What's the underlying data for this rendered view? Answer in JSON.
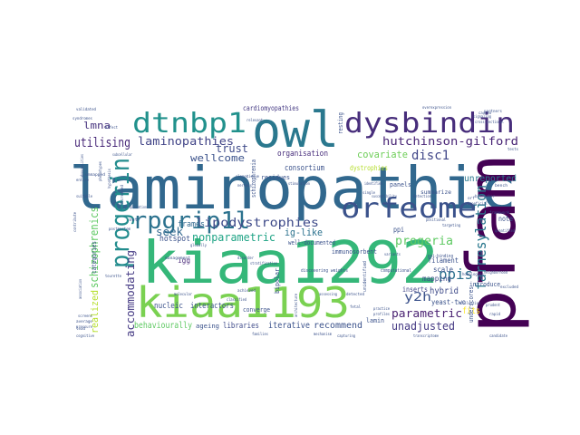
{
  "title": "",
  "colors": {
    "background": "#ffffff",
    "palette_note": "viridis",
    "dark_purple": "#440154",
    "indigo": "#46327e",
    "blue": "#365c8d",
    "teal": "#277f8e",
    "green_teal": "#1fa187",
    "green": "#4ac16d",
    "lime": "#a0da39",
    "yellow": "#fde725"
  },
  "words": [
    {
      "text": "laminopathic",
      "color": "#31688e"
    },
    {
      "text": "kiaa1292",
      "color": "#35b779"
    },
    {
      "text": "pfam",
      "color": "#440154"
    },
    {
      "text": "owl",
      "color": "#2a788e"
    },
    {
      "text": "kiaa1193",
      "color": "#7ad151"
    },
    {
      "text": "dysbindin",
      "color": "#472d7b"
    },
    {
      "text": "dtnbp1",
      "color": "#21918c"
    },
    {
      "text": "orfeome",
      "color": "#3b528b"
    },
    {
      "text": "rpgrip1l",
      "color": "#2c728e"
    },
    {
      "text": "progerin",
      "color": "#228c8d"
    },
    {
      "text": "lipodystrophies",
      "color": "#3e4a89"
    },
    {
      "text": "laminopathies",
      "color": "#414487"
    },
    {
      "text": "hutchinson-gilford",
      "color": "#482475"
    },
    {
      "text": "utilising",
      "color": "#482878"
    },
    {
      "text": "farnesylation",
      "color": "#2a788e"
    },
    {
      "text": "nonparametric",
      "color": "#20a486"
    },
    {
      "text": "schizophrenics",
      "color": "#5ec962"
    },
    {
      "text": "accommodating",
      "color": "#443983"
    },
    {
      "text": "ppis",
      "color": "#2c728e"
    },
    {
      "text": "progeria",
      "color": "#5ec962"
    },
    {
      "text": "y2h",
      "color": "#3b528b"
    },
    {
      "text": "parametric",
      "color": "#481f70"
    },
    {
      "text": "unadjusted",
      "color": "#443983"
    },
    {
      "text": "covariate",
      "color": "#6ece58"
    },
    {
      "text": "disc1",
      "color": "#404688"
    },
    {
      "text": "trust",
      "color": "#3e4a89"
    },
    {
      "text": "wellcome",
      "color": "#3b528b"
    },
    {
      "text": "seek",
      "color": "#31688e"
    },
    {
      "text": "lmna",
      "color": "#46327e"
    },
    {
      "text": "ig-like",
      "color": "#2c728e"
    },
    {
      "text": "realized",
      "color": "#b5de2b"
    },
    {
      "text": "behaviourally",
      "color": "#5ec962"
    },
    {
      "text": "iterative",
      "color": "#3b528b"
    },
    {
      "text": "recommend",
      "color": "#3b528b"
    },
    {
      "text": "hybrid",
      "color": "#3e4a89"
    },
    {
      "text": "unreported",
      "color": "#2a788e"
    },
    {
      "text": "fits",
      "color": "#fde725"
    },
    {
      "text": "mapping",
      "color": "#3e4a89"
    },
    {
      "text": "organisation",
      "color": "#472d7b"
    },
    {
      "text": "consortium",
      "color": "#3b528b"
    },
    {
      "text": "hotspot",
      "color": "#3b528b"
    },
    {
      "text": "frames",
      "color": "#31688e"
    },
    {
      "text": "igg",
      "color": "#482878"
    },
    {
      "text": "nucleic",
      "color": "#3b528b"
    },
    {
      "text": "interactors",
      "color": "#3b528b"
    },
    {
      "text": "libraries",
      "color": "#3e4a89"
    },
    {
      "text": "filament",
      "color": "#3b528b"
    },
    {
      "text": "scale",
      "color": "#3b528b"
    },
    {
      "text": "yeast-two",
      "color": "#3b528b"
    },
    {
      "text": "inserts",
      "color": "#414487"
    },
    {
      "text": "cardiomyopathies",
      "color": "#443983"
    },
    {
      "text": "dystrophies",
      "color": "#b5de2b"
    },
    {
      "text": "note",
      "color": "#3b528b"
    },
    {
      "text": "ppi",
      "color": "#3b528b"
    },
    {
      "text": "ageing",
      "color": "#3b528b"
    },
    {
      "text": "categories",
      "color": "#3b528b"
    },
    {
      "text": "lamin",
      "color": "#3b528b"
    },
    {
      "text": "bipolar",
      "color": "#3b528b"
    },
    {
      "text": "converge",
      "color": "#3b528b"
    },
    {
      "text": "underscores",
      "color": "#3b528b"
    },
    {
      "text": "panels",
      "color": "#3b528b"
    },
    {
      "text": "residues",
      "color": "#3b528b"
    },
    {
      "text": "introduce",
      "color": "#3b528b"
    },
    {
      "text": "immunosorbent",
      "color": "#3b528b"
    },
    {
      "text": "well-documented",
      "color": "#3b528b"
    },
    {
      "text": "discovering weights",
      "color": "#3b528b"
    },
    {
      "text": "schizophrenia",
      "color": "#3b528b"
    },
    {
      "text": "resting",
      "color": "#3b528b"
    },
    {
      "text": "summarize",
      "color": "#3b528b"
    },
    {
      "text": "validated",
      "color": "#3b528b"
    },
    {
      "text": "caused",
      "color": "#3b528b"
    },
    {
      "text": "tests",
      "color": "#3b528b"
    },
    {
      "text": "stratification",
      "color": "#3b528b"
    },
    {
      "text": "management",
      "color": "#3b528b"
    },
    {
      "text": "globally",
      "color": "#3b528b"
    },
    {
      "text": "prudent",
      "color": "#3b528b"
    },
    {
      "text": "cognitive",
      "color": "#3b528b"
    },
    {
      "text": "postmortem",
      "color": "#3b528b"
    },
    {
      "text": "partners",
      "color": "#3b528b"
    },
    {
      "text": "unidentified",
      "color": "#3b528b"
    },
    {
      "text": "computational",
      "color": "#3b528b"
    },
    {
      "text": "collection",
      "color": "#3b528b"
    },
    {
      "text": "detected",
      "color": "#3b528b"
    },
    {
      "text": "detection",
      "color": "#3b528b"
    },
    {
      "text": "framework",
      "color": "#3b528b"
    },
    {
      "text": "unmapped",
      "color": "#3b528b"
    },
    {
      "text": "clones",
      "color": "#3b528b"
    },
    {
      "text": "nervous",
      "color": "#3b528b"
    },
    {
      "text": "bench",
      "color": "#3b528b"
    },
    {
      "text": "signaling",
      "color": "#3b528b"
    },
    {
      "text": "fetal",
      "color": "#3b528b"
    },
    {
      "text": "affect",
      "color": "#3b528b"
    },
    {
      "text": "quantified",
      "color": "#3b528b"
    },
    {
      "text": "biomarker",
      "color": "#3b528b"
    },
    {
      "text": "disorder",
      "color": "#3b528b"
    },
    {
      "text": "assessing",
      "color": "#3b528b"
    },
    {
      "text": "variants",
      "color": "#3b528b"
    },
    {
      "text": "homologues",
      "color": "#3b528b"
    },
    {
      "text": "ppi-binding",
      "color": "#3b528b"
    },
    {
      "text": "tourette",
      "color": "#3b528b"
    },
    {
      "text": "average",
      "color": "#3b528b"
    },
    {
      "text": "pressure",
      "color": "#3b528b"
    },
    {
      "text": "stimulation",
      "color": "#3b528b"
    },
    {
      "text": "molecular",
      "color": "#3b528b"
    },
    {
      "text": "achieved",
      "color": "#3b528b"
    },
    {
      "text": "share",
      "color": "#3b528b"
    },
    {
      "text": "classified",
      "color": "#3b528b"
    },
    {
      "text": "orf",
      "color": "#3b528b"
    },
    {
      "text": "set",
      "color": "#3b528b"
    },
    {
      "text": "entire",
      "color": "#3b528b"
    },
    {
      "text": "syndromes",
      "color": "#3b528b"
    },
    {
      "text": "single",
      "color": "#3b528b"
    },
    {
      "text": "screens",
      "color": "#3b528b"
    },
    {
      "text": "subcellular",
      "color": "#3b528b"
    },
    {
      "text": "association",
      "color": "#3b528b"
    },
    {
      "text": "abnormalities",
      "color": "#3b528b"
    },
    {
      "text": "contribute",
      "color": "#3b528b"
    },
    {
      "text": "phenotypes",
      "color": "#3b528b"
    },
    {
      "text": "hypothesis",
      "color": "#3b528b"
    },
    {
      "text": "screened",
      "color": "#3b528b"
    },
    {
      "text": "excluded",
      "color": "#3b528b"
    },
    {
      "text": "practice",
      "color": "#3b528b"
    },
    {
      "text": "positional",
      "color": "#3b528b"
    },
    {
      "text": "architecture",
      "color": "#3b528b"
    },
    {
      "text": "overexpression",
      "color": "#3b528b"
    },
    {
      "text": "cross-sectional",
      "color": "#3b528b"
    },
    {
      "text": "suitable",
      "color": "#3b528b"
    },
    {
      "text": "lead",
      "color": "#3b528b"
    },
    {
      "text": "beneficial",
      "color": "#3b528b"
    },
    {
      "text": "relevant",
      "color": "#3b528b"
    },
    {
      "text": "identifies",
      "color": "#3b528b"
    },
    {
      "text": "tissue",
      "color": "#3b528b"
    },
    {
      "text": "targeting",
      "color": "#3b528b"
    },
    {
      "text": "rapid",
      "color": "#3b528b"
    },
    {
      "text": "profiles",
      "color": "#3b528b"
    },
    {
      "text": "susceptibility",
      "color": "#3b528b"
    },
    {
      "text": "neighborhood",
      "color": "#3b528b"
    },
    {
      "text": "transcriptome",
      "color": "#3b528b"
    },
    {
      "text": "capturing",
      "color": "#3b528b"
    },
    {
      "text": "mechanism",
      "color": "#3b528b"
    },
    {
      "text": "candidate",
      "color": "#3b528b"
    },
    {
      "text": "replication",
      "color": "#3b528b"
    },
    {
      "text": "families",
      "color": "#3b528b"
    }
  ]
}
